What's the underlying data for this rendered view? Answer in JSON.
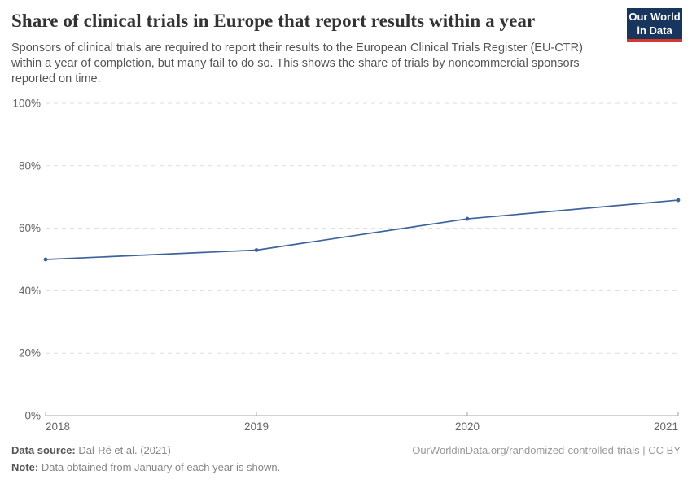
{
  "header": {
    "title": "Share of clinical trials in Europe that report results within a year",
    "subtitle": "Sponsors of clinical trials are required to report their results to the European Clinical Trials Register (EU-CTR) within a year of completion, but many fail to do so. This shows the share of trials by noncommercial sponsors reported on time.",
    "logo": {
      "line1": "Our World",
      "line2": "in Data"
    }
  },
  "chart_data": {
    "type": "line",
    "x": [
      2018,
      2019,
      2020,
      2021
    ],
    "xtick_labels": [
      "2018",
      "2019",
      "2020",
      "2021"
    ],
    "series": [
      {
        "name": "Share of trials reported on time",
        "values": [
          50,
          53,
          63,
          69
        ]
      }
    ],
    "ylim": [
      0,
      100
    ],
    "yticks": [
      0,
      20,
      40,
      60,
      80,
      100
    ],
    "ytick_suffix": "%",
    "grid": "horizontal-dashed",
    "legend": "none",
    "line_color": "#3d639d",
    "marker": "circle"
  },
  "footer": {
    "datasource_label": "Data source:",
    "datasource_value": " Dal-Ré et al. (2021)",
    "note_label": "Note:",
    "note_value": " Data obtained from January of each year is shown.",
    "link": "OurWorldinData.org/randomized-controlled-trials | CC BY"
  },
  "colors": {
    "line": "#3d639d",
    "gridline": "#dddddd",
    "axis": "#a5a5a5",
    "tick_label": "#666666",
    "title": "#333333",
    "subtitle": "#555555",
    "logo_bg": "#18365d",
    "logo_accent": "#d7372c"
  }
}
